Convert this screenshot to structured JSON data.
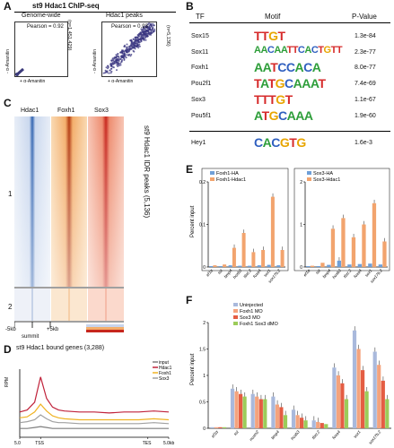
{
  "panelA": {
    "label": "A",
    "title": "st9 Hdac1 ChIP-seq",
    "left": {
      "title": "Genome-wide",
      "pearson": "Pearson = 0.92",
      "ylabel": "- α-Amanitin",
      "xlabel": "+ α-Amanitin"
    },
    "right": {
      "title": "Hdac1 peaks",
      "pearson": "Pearson = 0.93",
      "ylabel": "- α-Amanitin",
      "xlabel": "+ α-Amanitin"
    },
    "genomeWideCount": "(n=1,451,429)",
    "peakCount": "(n=5,136)"
  },
  "panelB": {
    "label": "B",
    "headers": {
      "tf": "TF",
      "motif": "Motif",
      "pvalue": "P-Value"
    },
    "rows": [
      {
        "tf": "Sox15",
        "motif": "TTGT",
        "pvalue": "1.3e-84"
      },
      {
        "tf": "Sox11",
        "motif": "AACAATTCACTGTT",
        "pvalue": "2.3e-77"
      },
      {
        "tf": "Foxh1",
        "motif": "AATCCACA",
        "pvalue": "8.0e-77"
      },
      {
        "tf": "Pou2f1",
        "motif": "TATGCAAAT",
        "pvalue": "7.4e-69"
      },
      {
        "tf": "Sox3",
        "motif": "TTTGT",
        "pvalue": "1.1e-67"
      },
      {
        "tf": "Pou5f1",
        "motif": "ATGCAAA",
        "pvalue": "1.9e-60"
      },
      {
        "tf": "Hey1",
        "motif": "CACGTG",
        "pvalue": "1.6e-3"
      }
    ]
  },
  "panelC": {
    "label": "C",
    "columns": [
      "Hdac1",
      "Foxh1",
      "Sox3"
    ],
    "clusters": [
      "1",
      "2"
    ],
    "side_label": "st9 Hdac1 IDR peaks (5,136)",
    "ticks": [
      "-5kb",
      "summit",
      "+5kb"
    ]
  },
  "panelD": {
    "label": "D",
    "title": "st9 Hdac1 bound genes (3,288)",
    "ylabel": "RPM",
    "legend": [
      "input",
      "Hdac1",
      "Foxh1",
      "Sox3"
    ],
    "xticks": [
      "5.0",
      "TSS",
      "TES",
      "5.0kb"
    ]
  },
  "panelE": {
    "label": "E",
    "ylabel": "Percent input",
    "left": {
      "legend": [
        "Foxh1-HA",
        "Foxh1-Hdac1"
      ],
      "yticks": [
        "0.2",
        "0.1",
        "0"
      ]
    },
    "right": {
      "legend": [
        "Sox3-HA",
        "Sox3-Hdac1"
      ],
      "yticks": [
        "2",
        "1",
        "0"
      ]
    }
  },
  "panelF": {
    "label": "F",
    "ylabel": "Percent input",
    "legend": [
      "Uninjected",
      "Foxh1 MO",
      "Sox3 MO",
      "Foxh1 Sox3 dMO"
    ],
    "yticks": [
      "2",
      "1.5",
      "1",
      "0.5",
      "0"
    ]
  },
  "chart_data": [
    {
      "type": "line",
      "panel": "D",
      "title": "st9 Hdac1 bound genes (3,288)",
      "ylabel": "RPM",
      "x": [
        0,
        5,
        10,
        14,
        18,
        22,
        26,
        30,
        40,
        50,
        60,
        70,
        80,
        90,
        100
      ],
      "series": [
        {
          "name": "input",
          "color": "#7f7f7f",
          "values": [
            0.9,
            0.9,
            1.0,
            1.1,
            1.0,
            0.9,
            0.9,
            0.9,
            0.9,
            0.9,
            0.9,
            0.9,
            0.9,
            0.9,
            0.9
          ]
        },
        {
          "name": "Hdac1",
          "color": "#c0223a",
          "values": [
            2.6,
            2.8,
            3.6,
            6.2,
            4.0,
            3.1,
            2.8,
            2.7,
            2.6,
            2.6,
            2.5,
            2.6,
            2.6,
            2.7,
            2.6
          ]
        },
        {
          "name": "Foxh1",
          "color": "#f0b323",
          "values": [
            2.0,
            2.1,
            2.6,
            3.4,
            2.7,
            2.2,
            2.0,
            1.9,
            1.8,
            1.8,
            1.8,
            1.8,
            1.8,
            1.9,
            1.8
          ]
        },
        {
          "name": "Sox3",
          "color": "#a0a0a0",
          "values": [
            1.5,
            1.6,
            1.8,
            2.3,
            1.9,
            1.6,
            1.5,
            1.5,
            1.4,
            1.4,
            1.4,
            1.4,
            1.4,
            1.5,
            1.4
          ]
        }
      ]
    },
    {
      "type": "bar",
      "panel": "E-left",
      "ylabel": "Percent input",
      "categories": [
        "ef1α",
        "sst",
        "bmp4",
        "hoxb3",
        "tbxt.2",
        "foxa4",
        "sox1",
        "sox17b.2"
      ],
      "ylim": [
        0,
        0.2
      ],
      "series": [
        {
          "name": "Foxh1-HA",
          "color": "#6f9fd8",
          "values": [
            0.002,
            0.002,
            0.004,
            0.003,
            0.003,
            0.004,
            0.005,
            0.004
          ]
        },
        {
          "name": "Foxh1-Hdac1",
          "color": "#f2a46e",
          "values": [
            0.004,
            0.006,
            0.045,
            0.08,
            0.035,
            0.04,
            0.165,
            0.04
          ]
        }
      ]
    },
    {
      "type": "bar",
      "panel": "E-right",
      "ylabel": "Percent input",
      "categories": [
        "ef1α",
        "sst",
        "bmp4",
        "hoxb3",
        "tbxt.2",
        "foxa4",
        "sox1",
        "sox17b.2"
      ],
      "ylim": [
        0,
        2
      ],
      "series": [
        {
          "name": "Sox3-HA",
          "color": "#6f9fd8",
          "values": [
            0.02,
            0.02,
            0.05,
            0.15,
            0.06,
            0.07,
            0.08,
            0.06
          ]
        },
        {
          "name": "Sox3-Hdac1",
          "color": "#f2a46e",
          "values": [
            0.03,
            0.1,
            0.9,
            1.15,
            0.7,
            1.0,
            1.5,
            0.6
          ]
        }
      ]
    },
    {
      "type": "bar",
      "panel": "F",
      "ylabel": "Percent input",
      "categories": [
        "ef1α",
        "sst",
        "nusm2",
        "bmp4",
        "hoxb3",
        "tbxt.2",
        "foxa4",
        "sox1",
        "sox17b.2"
      ],
      "ylim": [
        0,
        2
      ],
      "series": [
        {
          "name": "Uninjected",
          "color": "#a9b9dc",
          "values": [
            0.02,
            0.75,
            0.65,
            0.6,
            0.35,
            0.15,
            1.15,
            1.85,
            1.45
          ]
        },
        {
          "name": "Foxh1 MO",
          "color": "#f4a37d",
          "values": [
            0.02,
            0.7,
            0.6,
            0.45,
            0.25,
            0.12,
            1.0,
            1.5,
            1.2
          ]
        },
        {
          "name": "Sox3 MO",
          "color": "#e45d43",
          "values": [
            0.02,
            0.65,
            0.55,
            0.4,
            0.2,
            0.1,
            0.85,
            1.1,
            0.9
          ]
        },
        {
          "name": "Foxh1 Sox3 dMO",
          "color": "#9ccc5a",
          "values": [
            0.02,
            0.6,
            0.55,
            0.25,
            0.15,
            0.08,
            0.55,
            0.7,
            0.55
          ]
        }
      ]
    }
  ]
}
